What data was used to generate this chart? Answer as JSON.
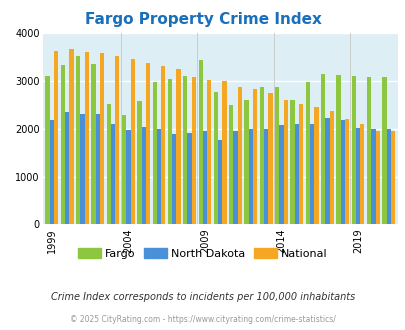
{
  "title": "Fargo Property Crime Index",
  "title_color": "#1a6fba",
  "subtitle": "Crime Index corresponds to incidents per 100,000 inhabitants",
  "footer": "© 2025 CityRating.com - https://www.cityrating.com/crime-statistics/",
  "years": [
    1999,
    2000,
    2001,
    2002,
    2003,
    2004,
    2005,
    2006,
    2007,
    2008,
    2009,
    2010,
    2011,
    2012,
    2013,
    2014,
    2015,
    2016,
    2017,
    2018,
    2019,
    2020,
    2021
  ],
  "fargo": [
    3100,
    3340,
    3520,
    3360,
    2520,
    2280,
    2570,
    2970,
    3040,
    3110,
    3430,
    2760,
    2490,
    2590,
    2880,
    2870,
    2590,
    2980,
    3150,
    3130,
    3110,
    3080,
    3080
  ],
  "north_dakota": [
    2190,
    2340,
    2300,
    2310,
    2090,
    1980,
    2040,
    1990,
    1880,
    1900,
    1950,
    1760,
    1950,
    1990,
    2000,
    2080,
    2090,
    2090,
    2230,
    2190,
    2020,
    1990,
    1990
  ],
  "national": [
    3620,
    3660,
    3600,
    3590,
    3520,
    3460,
    3370,
    3310,
    3250,
    3080,
    3010,
    2990,
    2870,
    2840,
    2740,
    2600,
    2510,
    2450,
    2360,
    2200,
    2100,
    1960,
    1960
  ],
  "fargo_color": "#8dc63f",
  "nd_color": "#4a90d9",
  "national_color": "#f5a623",
  "bg_color": "#ddeef4",
  "ylim": [
    0,
    4000
  ],
  "yticks": [
    0,
    1000,
    2000,
    3000,
    4000
  ],
  "grid_color": "#ffffff",
  "bar_width": 0.28,
  "tick_years": [
    1999,
    2004,
    2009,
    2014,
    2019
  ]
}
